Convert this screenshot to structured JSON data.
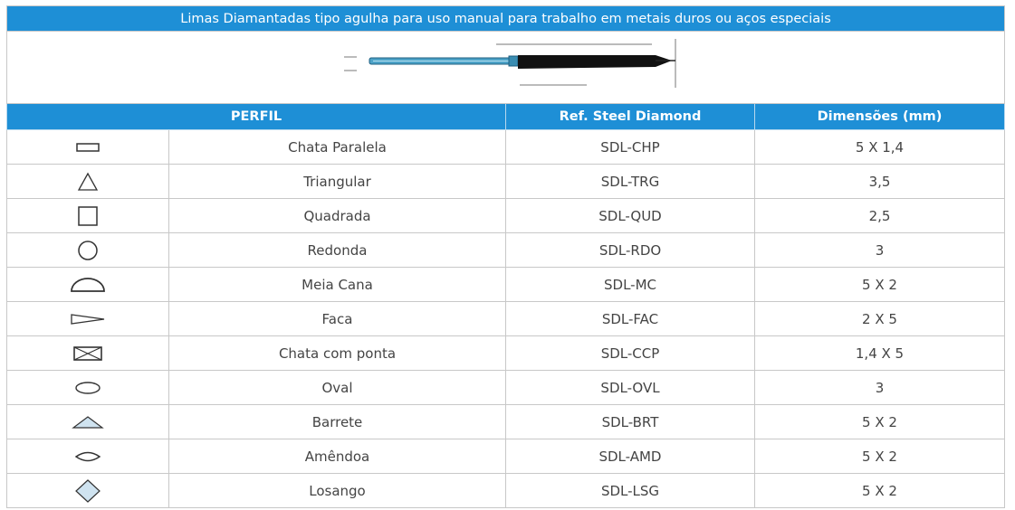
{
  "title": "Limas Diamantadas tipo agulha para uso manual para trabalho em metais duros ou aços especiais",
  "headers": {
    "perfil": "PERFIL",
    "ref": "Ref. Steel Diamond",
    "dim": "Dimensões (mm)"
  },
  "rows": [
    {
      "icon": "flat-rectangle-icon",
      "name": "Chata Paralela",
      "ref": "SDL-CHP",
      "dim": "5 X 1,4"
    },
    {
      "icon": "triangle-icon",
      "name": "Triangular",
      "ref": "SDL-TRG",
      "dim": "3,5"
    },
    {
      "icon": "square-icon",
      "name": "Quadrada",
      "ref": "SDL-QUD",
      "dim": "2,5"
    },
    {
      "icon": "circle-icon",
      "name": "Redonda",
      "ref": "SDL-RDO",
      "dim": "3"
    },
    {
      "icon": "half-round-icon",
      "name": "Meia Cana",
      "ref": "SDL-MC",
      "dim": "5 X 2"
    },
    {
      "icon": "knife-icon",
      "name": "Faca",
      "ref": "SDL-FAC",
      "dim": "2 X 5"
    },
    {
      "icon": "crossed-rectangle-icon",
      "name": "Chata com ponta",
      "ref": "SDL-CCP",
      "dim": "1,4 X 5"
    },
    {
      "icon": "oval-icon",
      "name": "Oval",
      "ref": "SDL-OVL",
      "dim": "3"
    },
    {
      "icon": "barrette-icon",
      "name": "Barrete",
      "ref": "SDL-BRT",
      "dim": "5 X 2"
    },
    {
      "icon": "almond-icon",
      "name": "Amêndoa",
      "ref": "SDL-AMD",
      "dim": "5 X 2"
    },
    {
      "icon": "diamond-icon",
      "name": "Losango",
      "ref": "SDL-LSG",
      "dim": "5 X 2"
    }
  ],
  "colors": {
    "header_bg": "#1e8fd6",
    "header_text": "#ffffff",
    "icon_stroke": "#333333",
    "icon_fill": "#cfe3f0"
  }
}
